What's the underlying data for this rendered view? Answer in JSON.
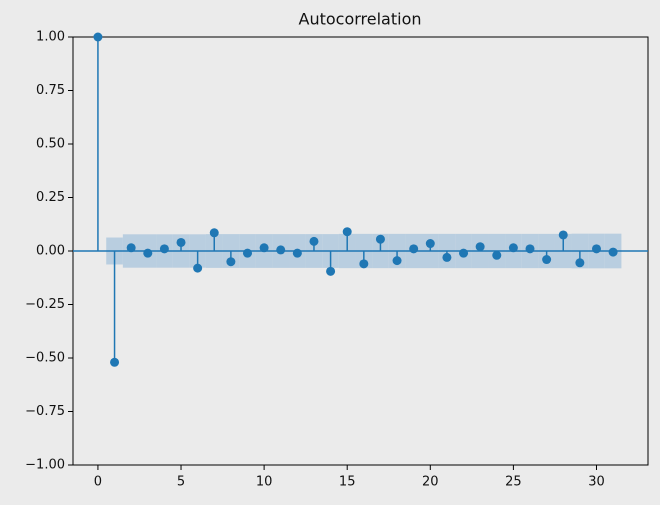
{
  "chart_data": {
    "type": "stem",
    "title": "Autocorrelation",
    "x": [
      0,
      1,
      2,
      3,
      4,
      5,
      6,
      7,
      8,
      9,
      10,
      11,
      12,
      13,
      14,
      15,
      16,
      17,
      18,
      19,
      20,
      21,
      22,
      23,
      24,
      25,
      26,
      27,
      28,
      29,
      30,
      31
    ],
    "values": [
      1.0,
      -0.52,
      0.015,
      -0.01,
      0.01,
      0.04,
      -0.08,
      0.085,
      -0.05,
      -0.01,
      0.015,
      0.005,
      -0.01,
      0.045,
      -0.095,
      0.09,
      -0.06,
      0.055,
      -0.045,
      0.01,
      0.035,
      -0.03,
      -0.01,
      0.02,
      -0.02,
      0.015,
      0.01,
      -0.04,
      0.075,
      -0.055,
      0.01,
      -0.005
    ],
    "confint": [
      null,
      0.063,
      0.078,
      0.078,
      0.078,
      0.078,
      0.078,
      0.079,
      0.079,
      0.079,
      0.079,
      0.079,
      0.079,
      0.079,
      0.079,
      0.08,
      0.08,
      0.08,
      0.08,
      0.08,
      0.08,
      0.08,
      0.08,
      0.08,
      0.08,
      0.08,
      0.08,
      0.08,
      0.08,
      0.081,
      0.081,
      0.081
    ],
    "color": "#1f77b4",
    "band_color": "#a8c4dc",
    "xlim": [
      -1.5,
      33.1
    ],
    "ylim": [
      -1.0,
      1.0
    ],
    "xticks": [
      0,
      5,
      10,
      15,
      20,
      25,
      30
    ],
    "yticks": [
      {
        "value": 1.0,
        "label": "1.00"
      },
      {
        "value": 0.75,
        "label": "0.75"
      },
      {
        "value": 0.5,
        "label": "0.50"
      },
      {
        "value": 0.25,
        "label": "0.25"
      },
      {
        "value": 0.0,
        "label": "0.00"
      },
      {
        "value": -0.25,
        "label": "−0.25"
      },
      {
        "value": -0.5,
        "label": "−0.50"
      },
      {
        "value": -0.75,
        "label": "−0.75"
      },
      {
        "value": -1.0,
        "label": "−1.00"
      }
    ]
  }
}
